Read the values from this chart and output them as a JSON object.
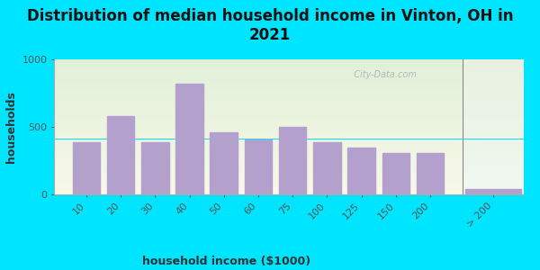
{
  "title": "Distribution of median household income in Vinton, OH in\n2021",
  "xlabel": "household income ($1000)",
  "ylabel": "households",
  "categories": [
    "10",
    "20",
    "30",
    "40",
    "50",
    "60",
    "75",
    "100",
    "125",
    "150",
    "200"
  ],
  "last_category": "> 200",
  "values": [
    390,
    580,
    390,
    820,
    460,
    410,
    500,
    390,
    350,
    305,
    305
  ],
  "last_value": 40,
  "bar_color": "#b3a0cc",
  "background_outer": "#00e5ff",
  "plot_bg_top": "#e0f0d8",
  "plot_bg_bottom": "#f8f8e8",
  "plot_bg_right_top": "#e8f0e0",
  "plot_bg_right_bottom": "#f0f8f0",
  "ylim": [
    0,
    1000
  ],
  "yticks": [
    0,
    500,
    1000
  ],
  "title_fontsize": 12,
  "axis_label_fontsize": 9,
  "tick_fontsize": 8,
  "watermark_text": "  City-Data.com"
}
